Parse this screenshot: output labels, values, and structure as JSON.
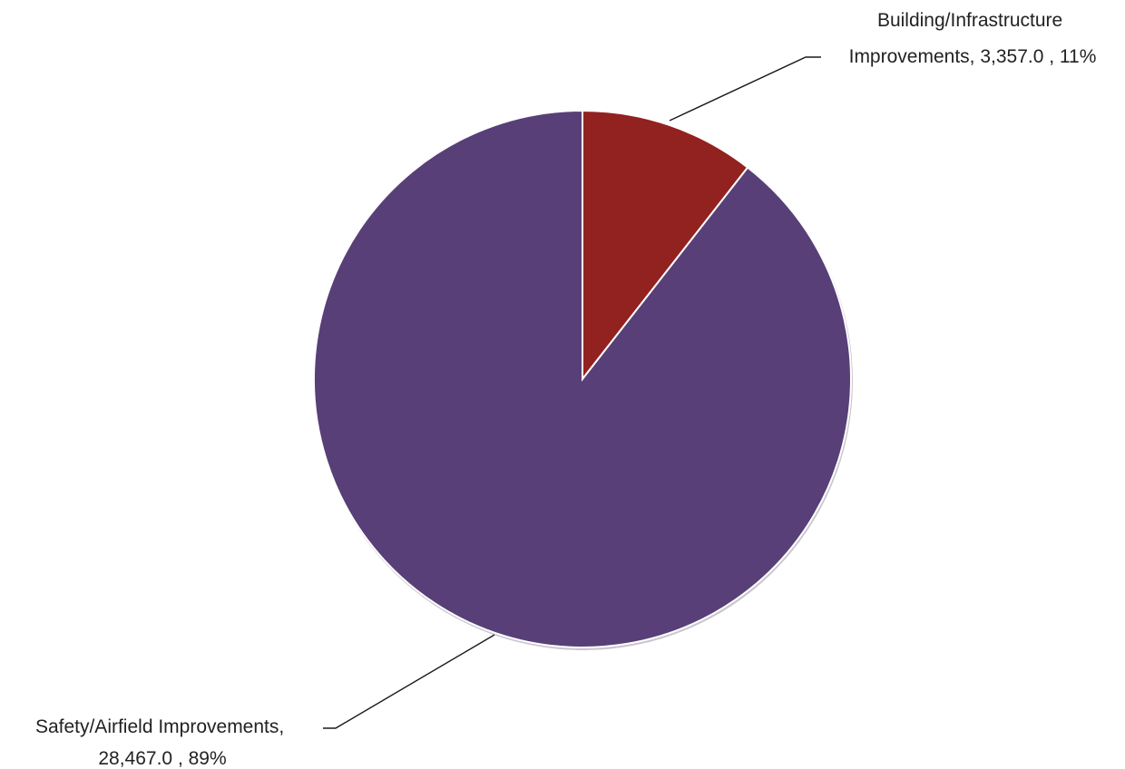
{
  "chart_data": {
    "type": "pie",
    "title": "",
    "slices": [
      {
        "name": "Building/Infrastructure Improvements",
        "value": 3357.0,
        "percent": 11,
        "color": "#92221f",
        "label_lines": [
          "Building/Infrastructure",
          "Improvements,  3,357.0 , 11%"
        ]
      },
      {
        "name": "Safety/Airfield Improvements",
        "value": 28467.0,
        "percent": 89,
        "color": "#583f77",
        "label_lines": [
          "Safety/Airfield Improvements,",
          "28,467.0 , 89%"
        ]
      }
    ],
    "start_angle_deg": 0,
    "direction": "clockwise",
    "legend": "none"
  }
}
